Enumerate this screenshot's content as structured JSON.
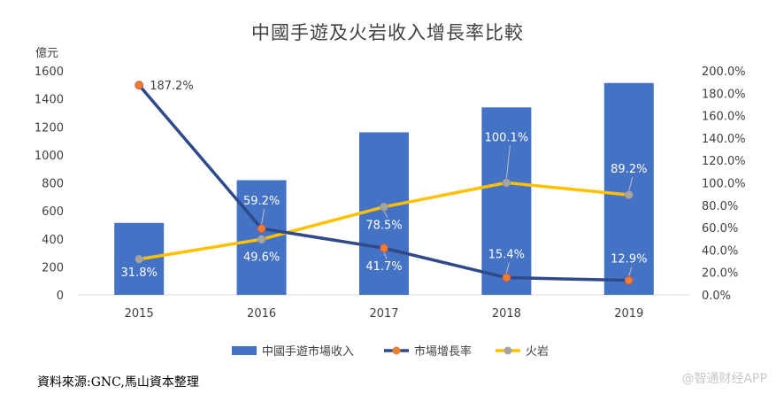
{
  "chart_data": {
    "type": "bar",
    "title": "中國手遊及火岩收入增長率比較",
    "y_left_unit": "億元",
    "categories": [
      "2015",
      "2016",
      "2017",
      "2018",
      "2019"
    ],
    "y_left_ticks": [
      "0",
      "200",
      "400",
      "600",
      "800",
      "1000",
      "1200",
      "1400",
      "1600"
    ],
    "y_left_lim": [
      0,
      1600
    ],
    "y_right_ticks": [
      "0.0%",
      "20.0%",
      "40.0%",
      "60.0%",
      "80.0%",
      "100.0%",
      "120.0%",
      "140.0%",
      "160.0%",
      "180.0%",
      "200.0%"
    ],
    "y_right_lim": [
      0,
      200
    ],
    "series": [
      {
        "name": "中國手遊市場收入",
        "type": "bar",
        "axis": "left",
        "color": "#4472C4",
        "values": [
          514,
          819,
          1161,
          1339,
          1513
        ]
      },
      {
        "name": "市場增長率",
        "type": "line",
        "axis": "right",
        "color": "#2F4A8A",
        "marker_color": "#ED7D31",
        "values": [
          187.2,
          59.2,
          41.7,
          15.4,
          12.9
        ],
        "labels": [
          "187.2%",
          "59.2%",
          "41.7%",
          "15.4%",
          "12.9%"
        ]
      },
      {
        "name": "火岩",
        "type": "line",
        "axis": "right",
        "color": "#FFC000",
        "marker_color": "#A5A5A5",
        "values": [
          31.8,
          49.6,
          78.5,
          100.1,
          89.2
        ],
        "labels": [
          "31.8%",
          "49.6%",
          "78.5%",
          "100.1%",
          "89.2%"
        ]
      }
    ],
    "legend": "bottom"
  },
  "footer": {
    "source": "資料來源:GNC,馬山資本整理",
    "watermark": "@智通财经APP"
  }
}
